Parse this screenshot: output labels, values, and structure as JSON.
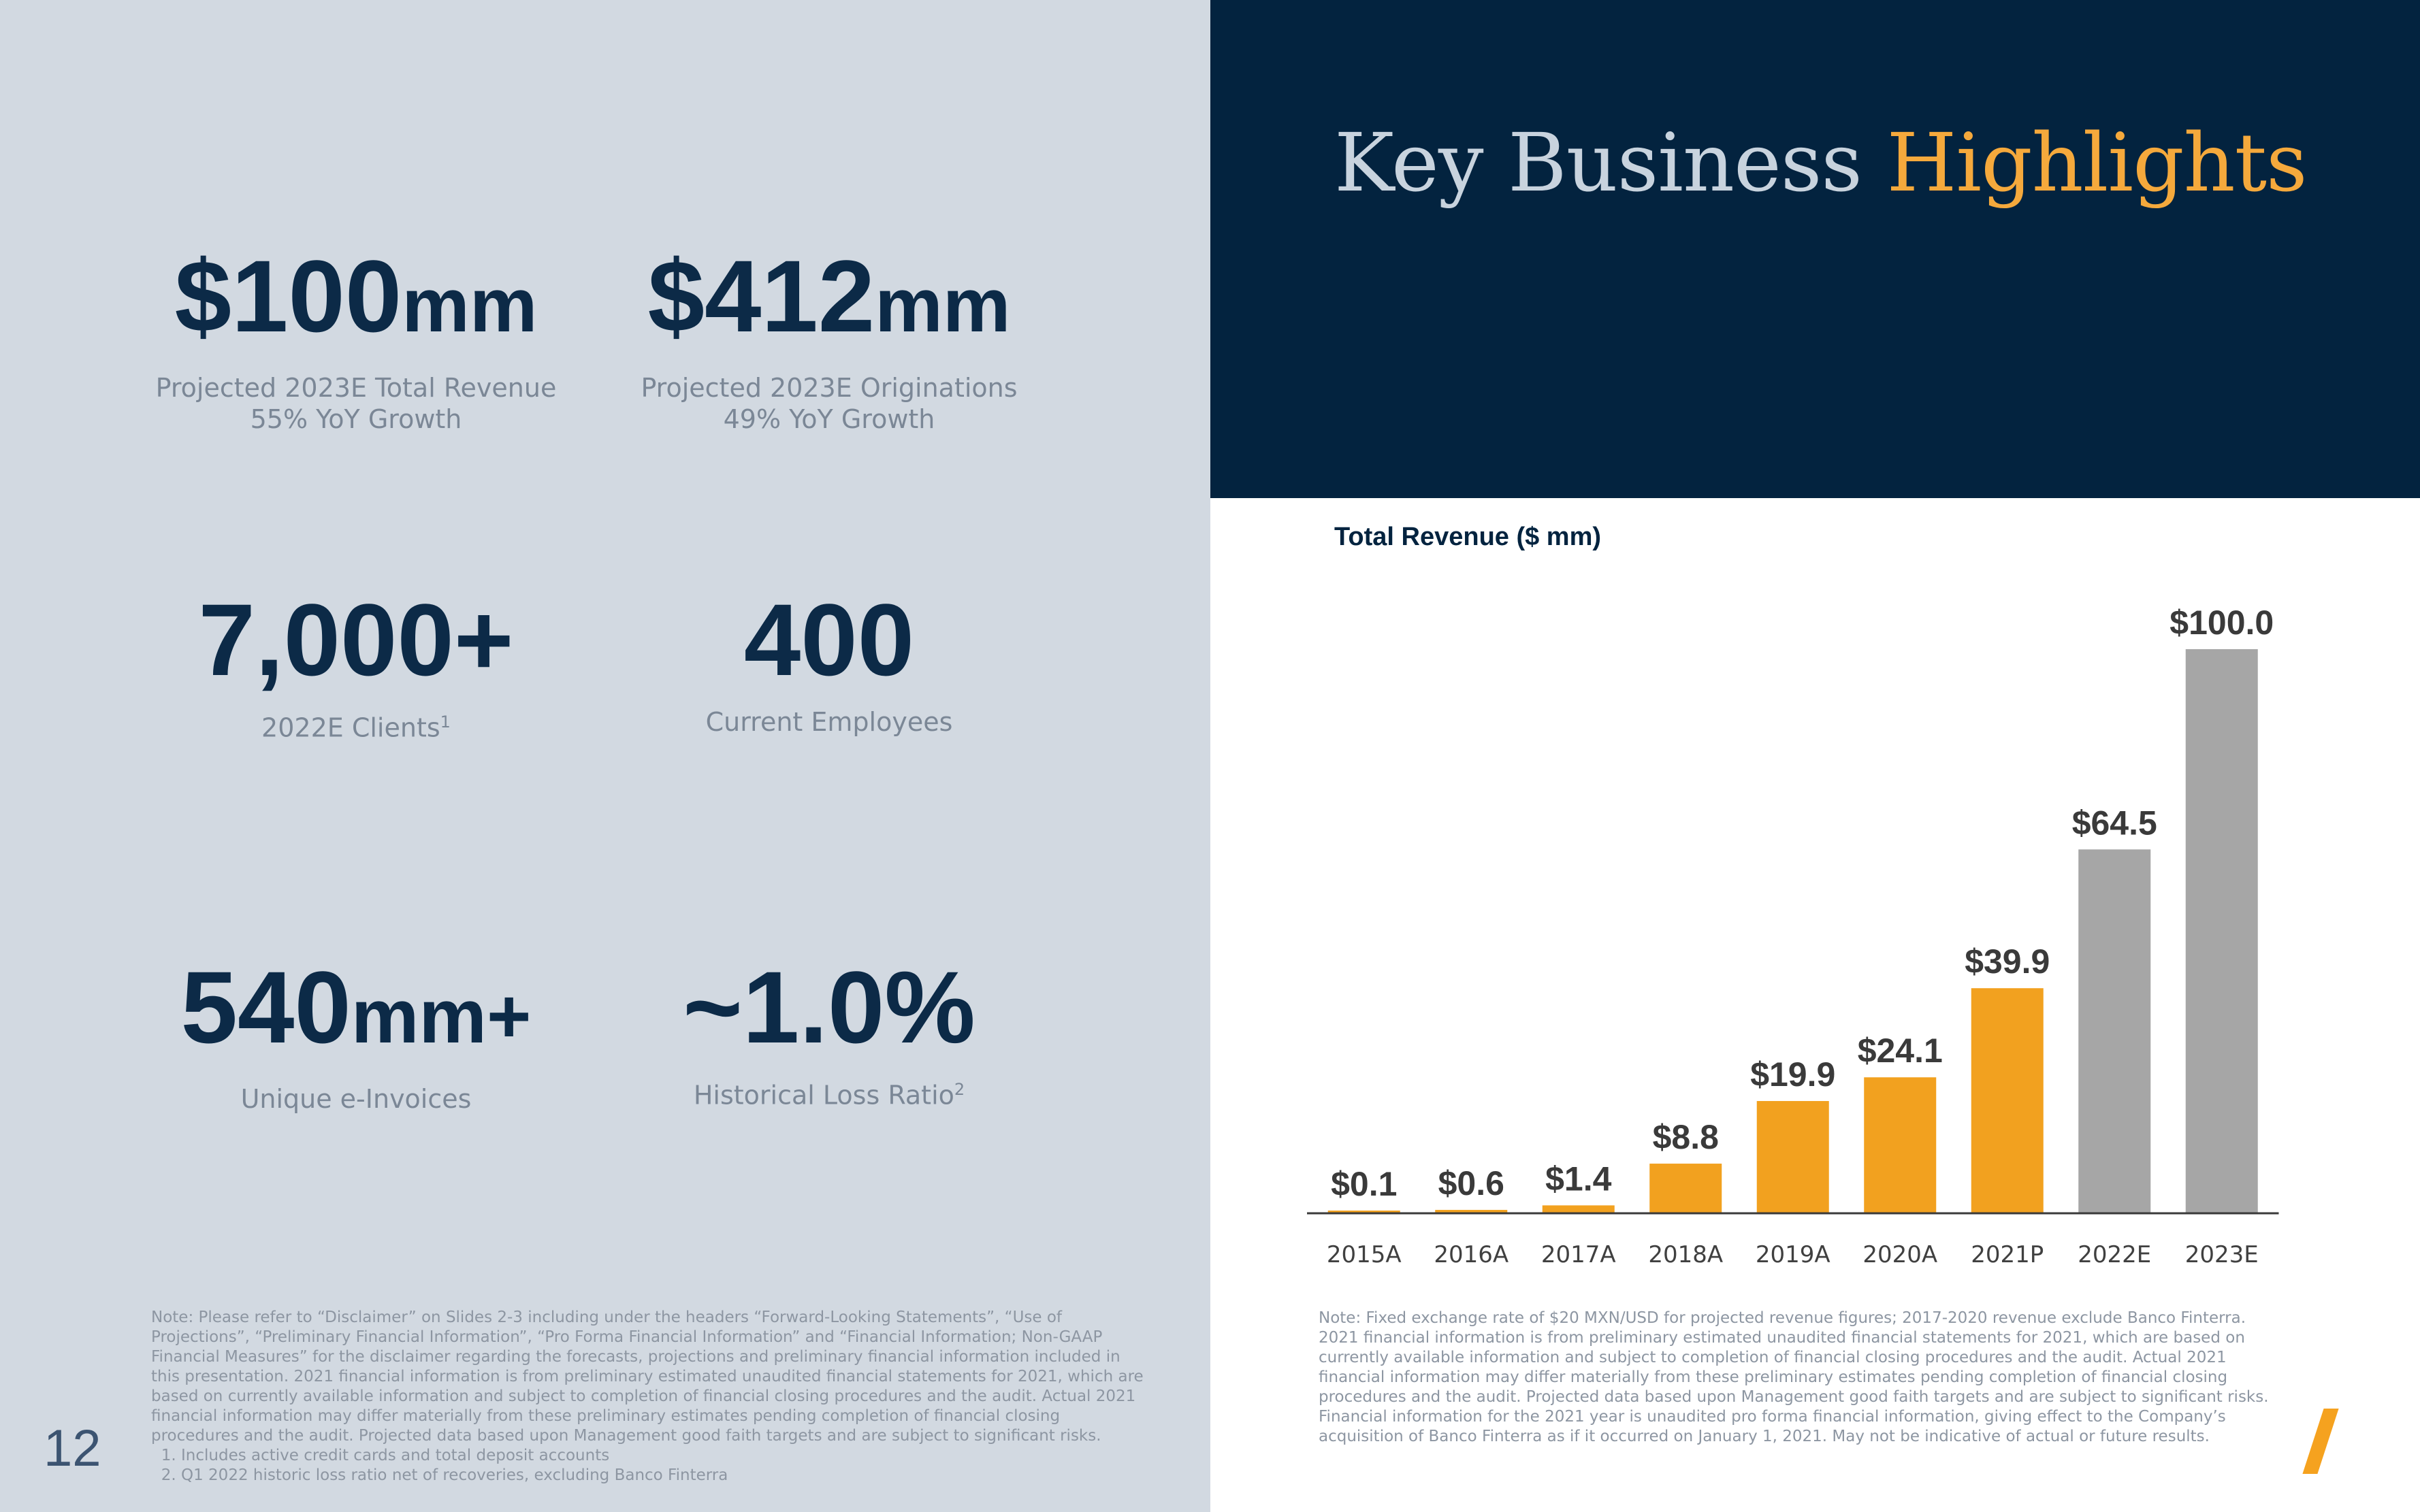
{
  "header": {
    "title_main": "Key Business",
    "title_accent": "Highlights"
  },
  "stats": [
    {
      "value": "$100",
      "unit": "mm",
      "line1": "Projected 2023E Total Revenue",
      "line2": "55% YoY Growth"
    },
    {
      "value": "$412",
      "unit": "mm",
      "line1": "Projected 2023E Originations",
      "line2": "49% YoY Growth"
    },
    {
      "value": "7,000+",
      "unit": "",
      "line1": "2022E Clients",
      "sup": "1"
    },
    {
      "value": "400",
      "unit": "",
      "line1": "Current Employees"
    },
    {
      "value": "540",
      "unit": "mm+",
      "line1": "Unique e-Invoices"
    },
    {
      "value": "~1.0%",
      "unit": "",
      "line1": "Historical Loss Ratio",
      "sup": "2"
    }
  ],
  "left_note": {
    "text": "Note: Please refer to “Disclaimer” on Slides 2-3 including under the headers “Forward-Looking Statements”, “Use of Projections”, “Preliminary Financial Information”, “Pro Forma Financial Information” and “Financial Information; Non-GAAP Financial Measures” for the disclaimer regarding the forecasts, projections and preliminary financial information included in this presentation. 2021 financial information is from preliminary estimated unaudited financial statements for 2021, which are based on currently available information and subject to completion of financial closing procedures and the audit. Actual 2021 financial information may differ materially from these preliminary estimates pending completion of financial closing procedures and the audit. Projected data based upon Management good faith targets and are subject to significant risks.",
    "footnotes": [
      "Includes active credit cards and total deposit accounts",
      "Q1 2022 historic loss ratio net of recoveries, excluding Banco Finterra"
    ]
  },
  "right_note": "Note: Fixed exchange rate of $20 MXN/USD for projected revenue figures; 2017-2020 revenue exclude Banco Finterra. 2021 financial information is from preliminary estimated unaudited financial statements for 2021, which are based on currently available information and subject to completion of financial closing procedures and the audit. Actual 2021 financial information may differ materially from these preliminary estimates pending completion of financial closing procedures and the audit. Projected data based upon Management good faith targets and are subject to significant risks. Financial information for the 2021 year is unaudited pro forma financial information, giving effect to the Company’s acquisition of Banco Finterra as if it occurred on January 1, 2021. May not be indicative of actual or future results.",
  "page_number": "12",
  "colors": {
    "actual": "#f2a11f",
    "estimate": "#a6a6a6",
    "navy": "#03233f",
    "accent": "#f5a93c"
  },
  "chart_data": {
    "type": "bar",
    "title": "Total Revenue ($ mm)",
    "categories": [
      "2015A",
      "2016A",
      "2017A",
      "2018A",
      "2019A",
      "2020A",
      "2021P",
      "2022E",
      "2023E"
    ],
    "values": [
      0.1,
      0.6,
      1.4,
      8.8,
      19.9,
      24.1,
      39.9,
      64.5,
      100.0
    ],
    "value_labels": [
      "$0.1",
      "$0.6",
      "$1.4",
      "$8.8",
      "$19.9",
      "$24.1",
      "$39.9",
      "$64.5",
      "$100.0"
    ],
    "bar_kind": [
      "actual",
      "actual",
      "actual",
      "actual",
      "actual",
      "actual",
      "actual",
      "estimate",
      "estimate"
    ],
    "ylim": [
      0,
      100
    ],
    "grid": false,
    "legend": "none"
  }
}
